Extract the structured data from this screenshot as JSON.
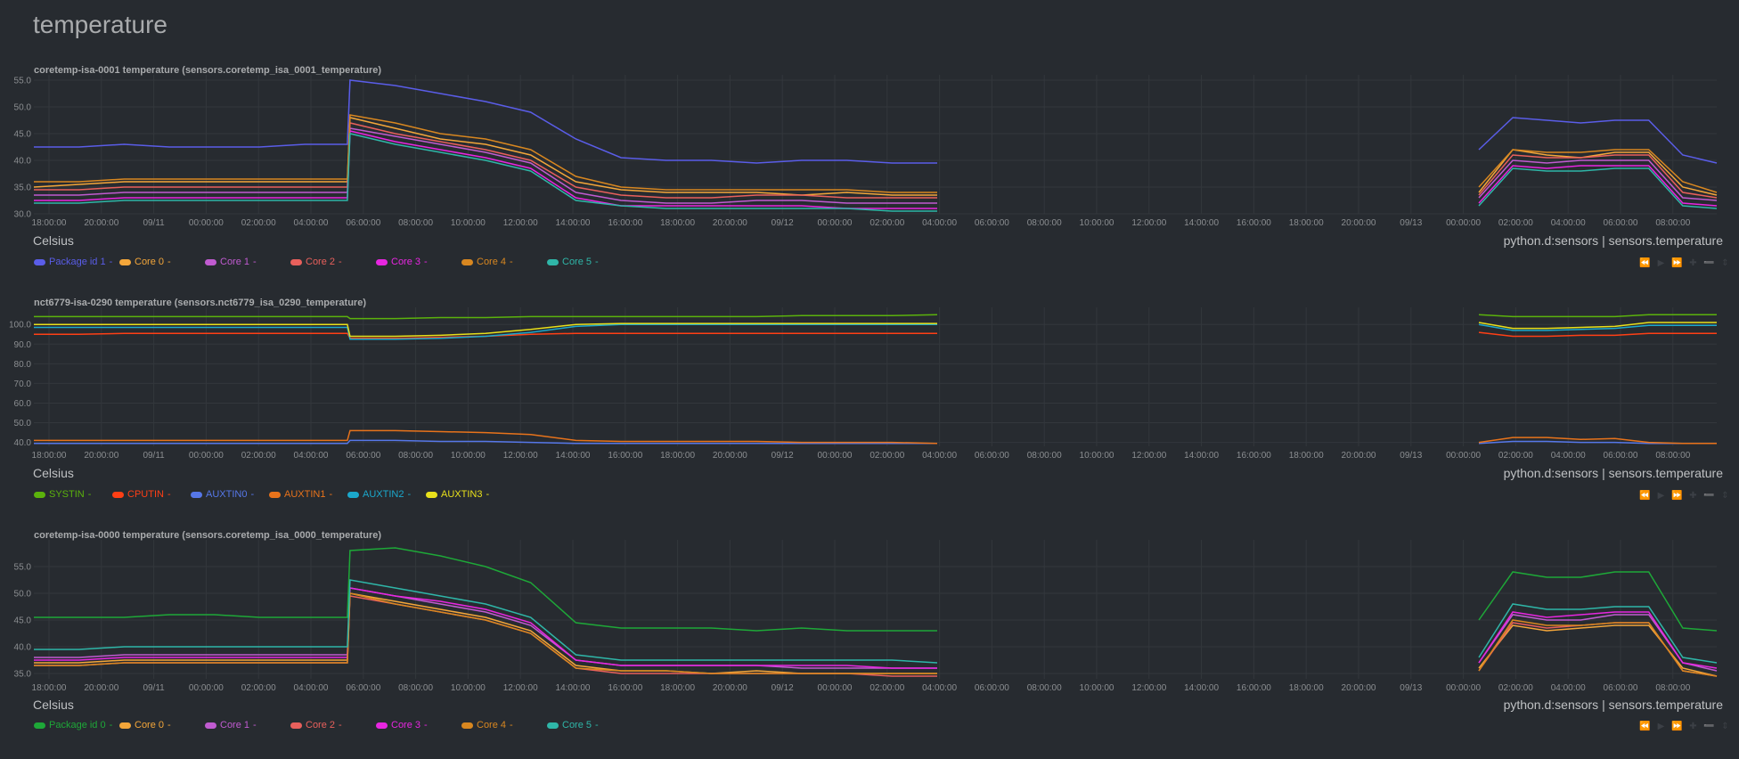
{
  "page": {
    "title": "temperature",
    "bg": "#272b30"
  },
  "x_tick_labels": [
    "18:00:00",
    "20:00:00",
    "09/11",
    "00:00:00",
    "02:00:00",
    "04:00:00",
    "06:00:00",
    "08:00:00",
    "10:00:00",
    "12:00:00",
    "14:00:00",
    "16:00:00",
    "18:00:00",
    "20:00:00",
    "09/12",
    "00:00:00",
    "02:00:00",
    "04:00:00",
    "06:00:00",
    "08:00:00",
    "10:00:00",
    "12:00:00",
    "14:00:00",
    "16:00:00",
    "18:00:00",
    "20:00:00",
    "09/13",
    "00:00:00",
    "02:00:00",
    "04:00:00",
    "06:00:00",
    "08:00:00"
  ],
  "toolbox_icons": [
    "rewind-icon",
    "play-icon",
    "forward-icon",
    "zoom-in-icon",
    "zoom-out-icon",
    "resize-icon"
  ],
  "chart_data": [
    {
      "type": "line",
      "title": "coretemp-isa-0001 temperature (sensors.coretemp_isa_0001_temperature)",
      "units": "Celsius",
      "context": "python.d:sensors | sensors.temperature",
      "ylim": [
        30,
        55
      ],
      "y_ticks": [
        "30.0",
        "35.0",
        "40.0",
        "45.0",
        "50.0",
        "55.0"
      ],
      "x_range": [
        "09/10 17:20",
        "09/13 09:40"
      ],
      "gap": [
        "09/12 04:00",
        "09/13 01:00"
      ],
      "grid": true,
      "legend_position": "bottom-left",
      "series": [
        {
          "name": "Package id 1",
          "color": "#5a5de8",
          "values": [
            42.5,
            42.5,
            43,
            42.5,
            42.5,
            42.5,
            43,
            55,
            54,
            52.5,
            51,
            49,
            44,
            40.5,
            40,
            40,
            39.5,
            40,
            40,
            39.5,
            39.5,
            42,
            48,
            47.5,
            47,
            47.5,
            47.5,
            41,
            39.5
          ]
        },
        {
          "name": "Core 0",
          "color": "#f3a63a",
          "values": [
            35,
            35.5,
            36,
            36,
            36,
            36,
            36,
            48,
            46,
            44,
            43,
            41,
            36,
            34.5,
            34,
            34,
            34,
            33.5,
            34,
            33.5,
            33.5,
            34,
            42,
            41,
            40.5,
            41.5,
            41.5,
            35,
            33.5
          ]
        },
        {
          "name": "Core 1",
          "color": "#c05bd0",
          "values": [
            33.5,
            33.5,
            34,
            34,
            34,
            34,
            34,
            46,
            44.5,
            43,
            41.5,
            39.5,
            34,
            32.5,
            32,
            32,
            32.5,
            32.5,
            32,
            32,
            32,
            33,
            40,
            39.5,
            40,
            40,
            40,
            33,
            32.5
          ]
        },
        {
          "name": "Core 2",
          "color": "#e8605c",
          "values": [
            34.5,
            34.5,
            35,
            35,
            35,
            35,
            35,
            47,
            45,
            43.5,
            42,
            40,
            35,
            33.5,
            33,
            33,
            33.5,
            33.5,
            33,
            33,
            33,
            33.5,
            41,
            40.5,
            40.5,
            41,
            41,
            34,
            33
          ]
        },
        {
          "name": "Core 3",
          "color": "#e726e0",
          "values": [
            32.5,
            32.5,
            33,
            33,
            33,
            33,
            33,
            45.5,
            43.5,
            42,
            40.5,
            38.5,
            33,
            31.5,
            31.5,
            31.5,
            31.5,
            31.5,
            31,
            31,
            31,
            32,
            39,
            38.5,
            39,
            39,
            39,
            32,
            31.5
          ]
        },
        {
          "name": "Core 4",
          "color": "#d88720",
          "values": [
            36,
            36,
            36.5,
            36.5,
            36.5,
            36.5,
            36.5,
            48.5,
            47,
            45,
            44,
            42,
            37,
            35,
            34.5,
            34.5,
            34.5,
            34.5,
            34.5,
            34,
            34,
            35,
            42,
            41.5,
            41.5,
            42,
            42,
            36,
            34
          ]
        },
        {
          "name": "Core 5",
          "color": "#2fb6a8",
          "values": [
            32,
            32,
            32.5,
            32.5,
            32.5,
            32.5,
            32.5,
            45,
            43,
            41.5,
            40,
            38,
            32.5,
            31.5,
            31,
            31,
            31,
            31,
            31,
            30.5,
            30.5,
            31.5,
            38.5,
            38,
            38,
            38.5,
            38.5,
            31.5,
            31
          ]
        }
      ]
    },
    {
      "type": "line",
      "title": "nct6779-isa-0290 temperature (sensors.nct6779_isa_0290_temperature)",
      "units": "Celsius",
      "context": "python.d:sensors | sensors.temperature",
      "ylim": [
        38,
        106
      ],
      "y_ticks": [
        "40.0",
        "50.0",
        "60.0",
        "70.0",
        "80.0",
        "90.0",
        "100.0"
      ],
      "x_range": [
        "09/10 17:20",
        "09/13 09:40"
      ],
      "gap": [
        "09/12 04:00",
        "09/13 01:00"
      ],
      "grid": true,
      "legend_position": "bottom-left",
      "series": [
        {
          "name": "SYSTIN",
          "color": "#5bb20c",
          "values": [
            104,
            104,
            104,
            104,
            104,
            104,
            104,
            103,
            103,
            103.5,
            103.5,
            104,
            104,
            104,
            104,
            104,
            104,
            104.5,
            104.5,
            104.5,
            105,
            105,
            104,
            104,
            104,
            104,
            105,
            105,
            105
          ]
        },
        {
          "name": "CPUTIN",
          "color": "#ff3f15",
          "values": [
            95,
            95,
            95.5,
            95.5,
            95.5,
            95.5,
            95.5,
            93,
            93,
            93.5,
            94,
            95,
            95.5,
            95.5,
            95.5,
            95.5,
            95.5,
            95.5,
            95.5,
            95.5,
            95.5,
            96,
            94,
            94,
            94.5,
            94.5,
            95.5,
            95.5,
            95.5
          ]
        },
        {
          "name": "AUXTIN0",
          "color": "#5677e8",
          "values": [
            39.5,
            39.5,
            39.5,
            39.5,
            39.5,
            39.5,
            39.5,
            41,
            41,
            40.5,
            40.5,
            40,
            39.5,
            39.5,
            39.5,
            39.5,
            39.5,
            39.5,
            39.5,
            39.5,
            39.5,
            39.5,
            40.5,
            40.5,
            40,
            40,
            39.5,
            39.5,
            39.5
          ]
        },
        {
          "name": "AUXTIN1",
          "color": "#e8731b",
          "values": [
            41,
            41,
            41,
            41,
            41,
            41,
            41,
            46,
            46,
            45.5,
            45,
            44,
            41,
            40.5,
            40.5,
            40.5,
            40.5,
            40,
            40,
            40,
            39.5,
            40,
            42.5,
            42.5,
            41.5,
            42,
            40,
            39.5,
            39.5
          ]
        },
        {
          "name": "AUXTIN2",
          "color": "#1ba8cc",
          "values": [
            98.5,
            98.5,
            98.5,
            98.5,
            98.5,
            98.5,
            98.5,
            92.5,
            92.5,
            93,
            94,
            96,
            99,
            100,
            100,
            100,
            100,
            100,
            100,
            100,
            100,
            100,
            97,
            97,
            97.5,
            98,
            99.5,
            99.5,
            99.5
          ]
        },
        {
          "name": "AUXTIN3",
          "color": "#e8e01b",
          "values": [
            100,
            100,
            100,
            100,
            100,
            100,
            100,
            94,
            94,
            94.5,
            95.5,
            97.5,
            100,
            100.5,
            100.5,
            100.5,
            100.5,
            100.5,
            100.5,
            100.5,
            100.5,
            101,
            98,
            98,
            98.5,
            99,
            101,
            101,
            101
          ]
        }
      ]
    },
    {
      "type": "line",
      "title": "coretemp-isa-0000 temperature (sensors.coretemp_isa_0000_temperature)",
      "units": "Celsius",
      "context": "python.d:sensors | sensors.temperature",
      "ylim": [
        34,
        59
      ],
      "y_ticks": [
        "35.0",
        "40.0",
        "45.0",
        "50.0",
        "55.0"
      ],
      "x_range": [
        "09/10 17:20",
        "09/13 09:40"
      ],
      "gap": [
        "09/12 04:00",
        "09/13 01:00"
      ],
      "grid": true,
      "legend_position": "bottom-left",
      "series": [
        {
          "name": "Package id 0",
          "color": "#1ea838",
          "values": [
            45.5,
            45.5,
            45.5,
            46,
            46,
            45.5,
            45.5,
            58,
            58.5,
            57,
            55,
            52,
            44.5,
            43.5,
            43.5,
            43.5,
            43,
            43.5,
            43,
            43,
            43,
            45,
            54,
            53,
            53,
            54,
            54,
            43.5,
            43
          ]
        },
        {
          "name": "Core 0",
          "color": "#f3a63a",
          "values": [
            37,
            37,
            37.5,
            37.5,
            37.5,
            37.5,
            37.5,
            50,
            48.5,
            47,
            45.5,
            43,
            36.5,
            35.5,
            35.5,
            35,
            35.5,
            35,
            35,
            35,
            35,
            36,
            44,
            43,
            43.5,
            44,
            44,
            36,
            34.5
          ]
        },
        {
          "name": "Core 1",
          "color": "#c05bd0",
          "values": [
            38,
            38,
            38.5,
            38.5,
            38.5,
            38.5,
            38.5,
            51,
            49.5,
            48,
            46.5,
            44,
            37.5,
            36.5,
            36.5,
            36.5,
            36.5,
            36,
            36,
            36,
            36,
            37,
            46,
            45,
            45,
            46,
            46,
            37,
            35.5
          ]
        },
        {
          "name": "Core 2",
          "color": "#e8605c",
          "values": [
            36.5,
            36.5,
            37,
            37,
            37,
            37,
            37,
            49.5,
            48,
            46.5,
            45,
            42.5,
            36,
            35,
            35,
            35,
            35,
            35,
            35,
            34.5,
            34.5,
            35.5,
            44.5,
            43.5,
            44,
            44.5,
            44.5,
            35.5,
            34.5
          ]
        },
        {
          "name": "Core 3",
          "color": "#e726e0",
          "values": [
            37.5,
            37.5,
            38,
            38,
            38,
            38,
            38,
            51,
            49.5,
            48.5,
            47,
            44.5,
            37.5,
            36.5,
            36.5,
            36.5,
            36.5,
            36.5,
            36.5,
            36,
            36,
            37,
            46.5,
            45.5,
            46,
            46.5,
            46.5,
            37,
            36
          ]
        },
        {
          "name": "Core 4",
          "color": "#d88720",
          "values": [
            36.5,
            36.5,
            37,
            37,
            37,
            37,
            37,
            50,
            48,
            46.5,
            45,
            42.5,
            36,
            35.5,
            35.5,
            35,
            35,
            35,
            35,
            35,
            35,
            35.5,
            45,
            44,
            44,
            44.5,
            44.5,
            35.5,
            34.5
          ]
        },
        {
          "name": "Core 5",
          "color": "#2fb6a8",
          "values": [
            39.5,
            39.5,
            40,
            40,
            40,
            40,
            40,
            52.5,
            51,
            49.5,
            48,
            45.5,
            38.5,
            37.5,
            37.5,
            37.5,
            37.5,
            37.5,
            37.5,
            37.5,
            37,
            38,
            48,
            47,
            47,
            47.5,
            47.5,
            38,
            37
          ]
        }
      ]
    }
  ]
}
